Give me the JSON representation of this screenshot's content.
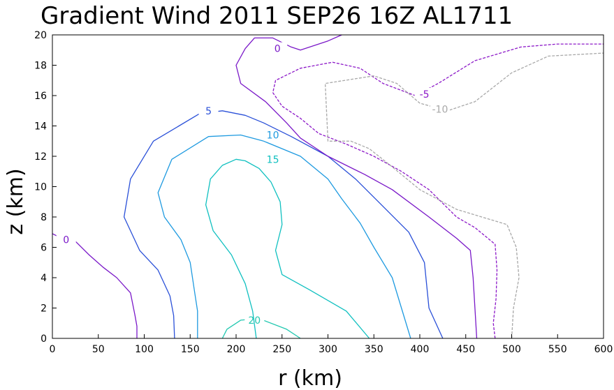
{
  "chart_data": {
    "type": "contour",
    "title": "Gradient Wind 2011 SEP26 16Z  AL1711",
    "xlabel": "r (km)",
    "ylabel": "z (km)",
    "xlim": [
      0,
      600
    ],
    "ylim": [
      0,
      20
    ],
    "xticks": [
      "0",
      "50",
      "100",
      "150",
      "200",
      "250",
      "300",
      "350",
      "400",
      "450",
      "500",
      "550",
      "600"
    ],
    "yticks": [
      "0",
      "2",
      "4",
      "6",
      "8",
      "10",
      "12",
      "14",
      "16",
      "18",
      "20"
    ],
    "grid": false,
    "contours": [
      {
        "level": "20",
        "color": "#22c8b0",
        "dashed": false,
        "label_at": [
          220,
          1.2
        ],
        "points": [
          [
            185,
            0
          ],
          [
            190,
            0.6
          ],
          [
            205,
            1.2
          ],
          [
            225,
            1.3
          ],
          [
            255,
            0.6
          ],
          [
            270,
            0
          ]
        ]
      },
      {
        "level": "15",
        "color": "#10c0c0",
        "dashed": false,
        "label_at": [
          240,
          11.8
        ],
        "points": [
          [
            345,
            0
          ],
          [
            320,
            1.8
          ],
          [
            280,
            3.2
          ],
          [
            250,
            4.2
          ],
          [
            243,
            5.8
          ],
          [
            250,
            7.5
          ],
          [
            248,
            9.0
          ],
          [
            238,
            10.3
          ],
          [
            225,
            11.2
          ],
          [
            210,
            11.7
          ],
          [
            200,
            11.8
          ],
          [
            185,
            11.4
          ],
          [
            172,
            10.5
          ],
          [
            167,
            8.8
          ],
          [
            175,
            7.1
          ],
          [
            195,
            5.5
          ],
          [
            210,
            3.6
          ],
          [
            218,
            1.8
          ],
          [
            222,
            0
          ]
        ]
      },
      {
        "level": "10",
        "color": "#1e9ae0",
        "dashed": false,
        "label_at": [
          240,
          13.4
        ],
        "points": [
          [
            390,
            0
          ],
          [
            380,
            2.0
          ],
          [
            370,
            4.0
          ],
          [
            350,
            6.0
          ],
          [
            335,
            7.6
          ],
          [
            315,
            9.2
          ],
          [
            300,
            10.5
          ],
          [
            270,
            12.0
          ],
          [
            230,
            13.0
          ],
          [
            205,
            13.4
          ],
          [
            170,
            13.3
          ],
          [
            130,
            11.8
          ],
          [
            115,
            9.6
          ],
          [
            122,
            8.0
          ],
          [
            140,
            6.5
          ],
          [
            150,
            5.0
          ],
          [
            155,
            3.0
          ],
          [
            158,
            1.8
          ],
          [
            158,
            0
          ]
        ]
      },
      {
        "level": "5",
        "color": "#2a50d8",
        "dashed": false,
        "label_at": [
          170,
          15.0
        ],
        "points": [
          [
            425,
            0
          ],
          [
            410,
            2.0
          ],
          [
            405,
            5.0
          ],
          [
            388,
            7.0
          ],
          [
            355,
            9.0
          ],
          [
            330,
            10.5
          ],
          [
            300,
            12.0
          ],
          [
            260,
            13.3
          ],
          [
            230,
            14.2
          ],
          [
            210,
            14.7
          ],
          [
            185,
            15.0
          ],
          [
            160,
            14.8
          ],
          [
            110,
            13.0
          ],
          [
            85,
            10.5
          ],
          [
            78,
            8.0
          ],
          [
            95,
            5.8
          ],
          [
            115,
            4.5
          ],
          [
            128,
            2.8
          ],
          [
            132,
            1.5
          ],
          [
            133,
            0
          ]
        ]
      },
      {
        "level": "0",
        "color": "#7a18c8",
        "dashed": false,
        "label_at": [
          245,
          19.1
        ],
        "points": [
          [
            462,
            0
          ],
          [
            460,
            2.0
          ],
          [
            458,
            4.0
          ],
          [
            455,
            5.8
          ],
          [
            440,
            6.6
          ],
          [
            410,
            8.0
          ],
          [
            370,
            9.8
          ],
          [
            340,
            10.8
          ],
          [
            300,
            12.0
          ],
          [
            270,
            13.2
          ],
          [
            255,
            14.2
          ],
          [
            232,
            15.6
          ],
          [
            205,
            16.8
          ],
          [
            200,
            18.0
          ],
          [
            210,
            19.1
          ],
          [
            220,
            19.8
          ],
          [
            240,
            19.8
          ],
          [
            260,
            19.2
          ],
          [
            270,
            19.0
          ],
          [
            300,
            19.6
          ],
          [
            315,
            20.0
          ]
        ]
      },
      {
        "level": "0",
        "color": "#7a18c8",
        "dashed": false,
        "label_at": [
          15,
          6.5
        ],
        "points": [
          [
            0,
            6.9
          ],
          [
            10,
            6.6
          ],
          [
            25,
            6.4
          ],
          [
            40,
            5.5
          ],
          [
            55,
            4.7
          ],
          [
            70,
            4.0
          ],
          [
            85,
            3.0
          ],
          [
            90,
            1.5
          ],
          [
            92,
            0.8
          ],
          [
            92,
            0
          ]
        ]
      },
      {
        "level": "-5",
        "color": "#8c18c8",
        "dashed": true,
        "label_at": [
          405,
          16.1
        ],
        "points": [
          [
            482,
            0
          ],
          [
            480,
            1.0
          ],
          [
            483,
            2.6
          ],
          [
            484,
            4.5
          ],
          [
            482,
            6.2
          ],
          [
            460,
            7.3
          ],
          [
            440,
            8.0
          ],
          [
            410,
            9.8
          ],
          [
            380,
            11.0
          ],
          [
            350,
            12.0
          ],
          [
            320,
            12.8
          ],
          [
            290,
            13.5
          ],
          [
            270,
            14.5
          ],
          [
            250,
            15.3
          ],
          [
            240,
            16.2
          ],
          [
            243,
            17.0
          ],
          [
            270,
            17.8
          ],
          [
            305,
            18.2
          ],
          [
            335,
            17.8
          ],
          [
            360,
            16.8
          ],
          [
            395,
            16.0
          ],
          [
            420,
            16.8
          ],
          [
            460,
            18.3
          ],
          [
            510,
            19.2
          ],
          [
            550,
            19.4
          ],
          [
            600,
            19.4
          ]
        ]
      },
      {
        "level": "-10",
        "color": "#a8a8a8",
        "dashed": true,
        "label_at": [
          422,
          15.1
        ],
        "points": [
          [
            500,
            0
          ],
          [
            502,
            2.0
          ],
          [
            508,
            4.0
          ],
          [
            505,
            6.0
          ],
          [
            495,
            7.5
          ],
          [
            440,
            8.5
          ],
          [
            400,
            9.8
          ],
          [
            370,
            11.3
          ],
          [
            345,
            12.5
          ],
          [
            325,
            13.0
          ],
          [
            300,
            13.0
          ],
          [
            297,
            16.8
          ],
          [
            350,
            17.3
          ],
          [
            375,
            16.8
          ],
          [
            400,
            15.5
          ],
          [
            430,
            15.0
          ],
          [
            460,
            15.6
          ],
          [
            500,
            17.5
          ],
          [
            540,
            18.6
          ],
          [
            600,
            18.8
          ]
        ]
      }
    ]
  }
}
